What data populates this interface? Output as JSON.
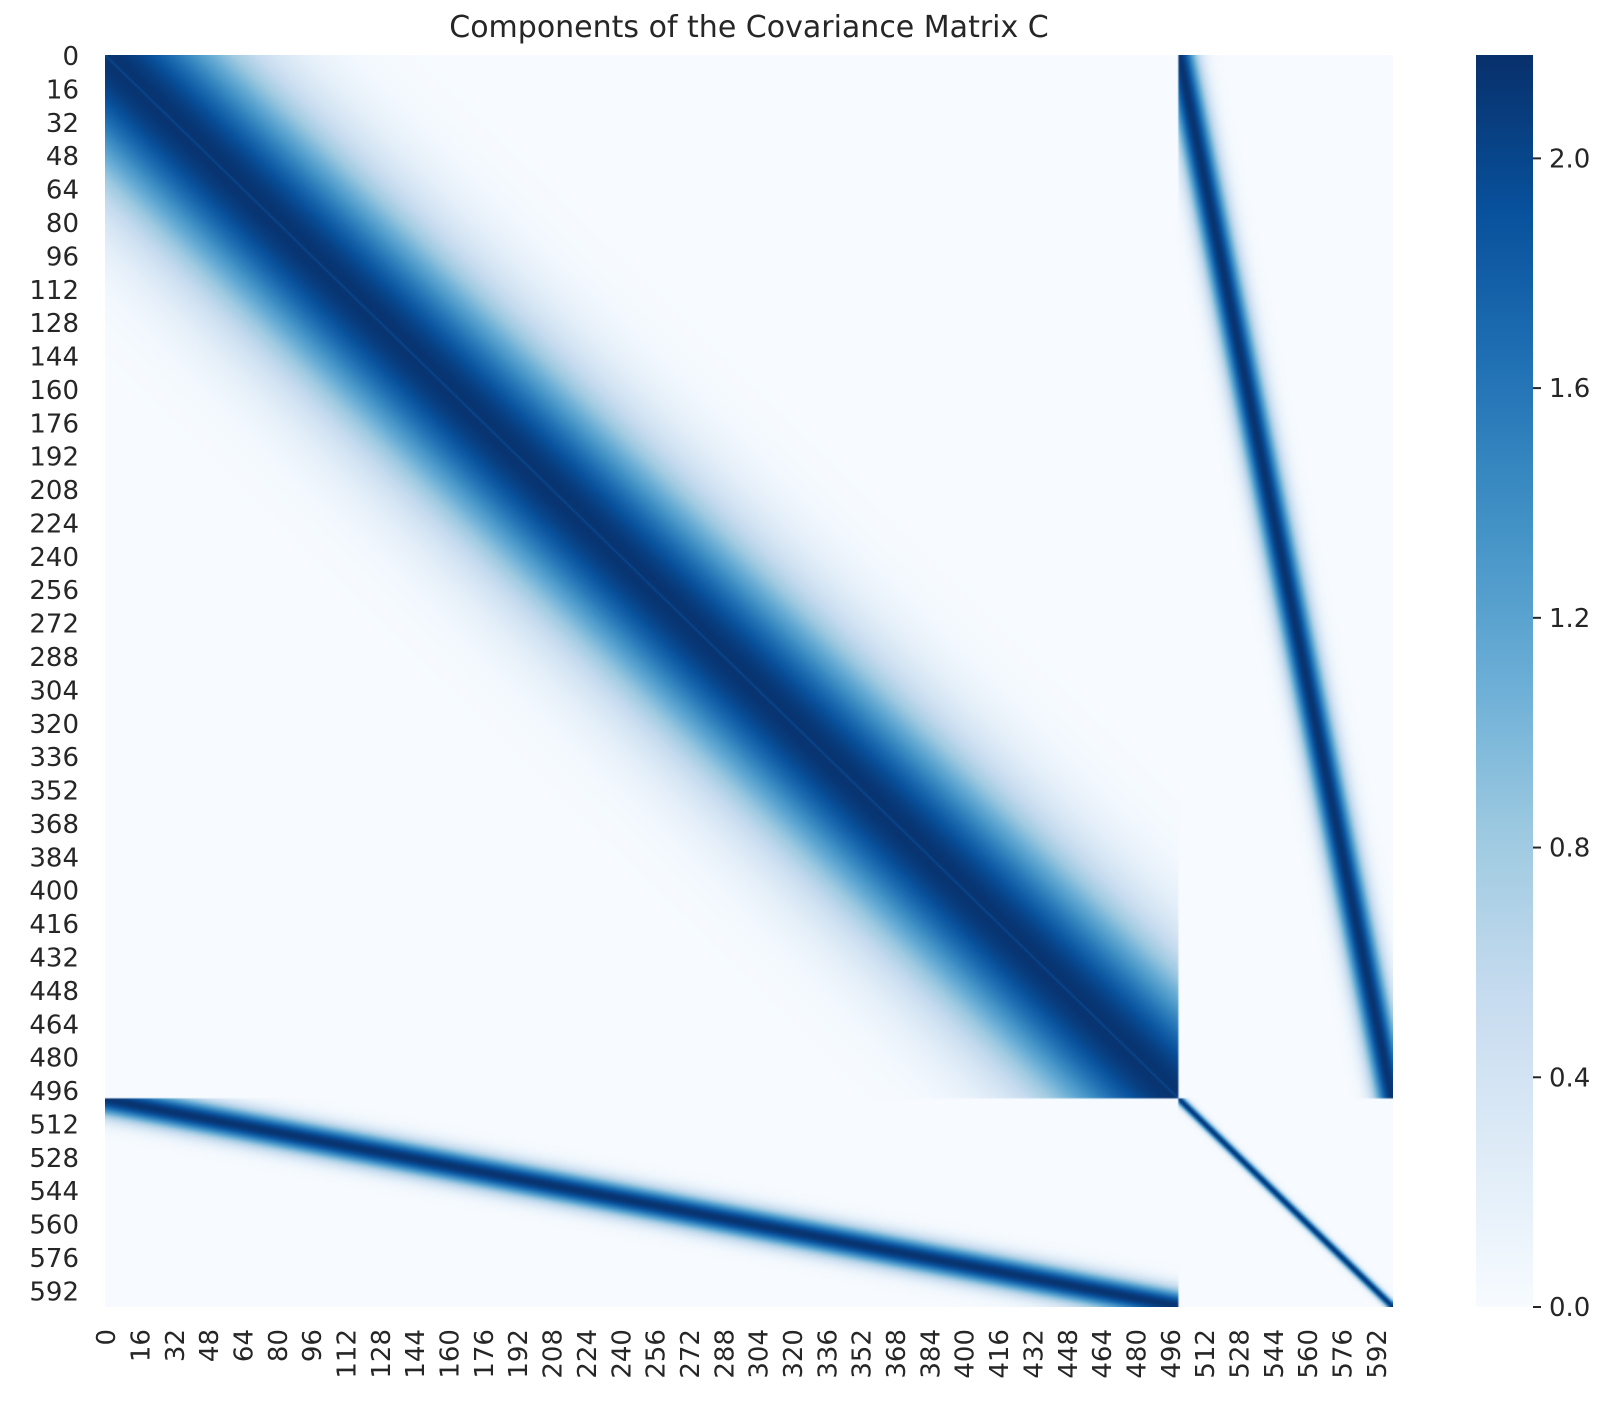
{
  "chart_data": {
    "type": "heatmap",
    "title": "Components of the Covariance Matrix C",
    "xlabel": "",
    "ylabel": "",
    "n": 600,
    "block_boundary": 500,
    "tick_step": 16,
    "x_ticks": [
      "0",
      "16",
      "32",
      "48",
      "64",
      "80",
      "96",
      "112",
      "128",
      "144",
      "160",
      "176",
      "192",
      "208",
      "224",
      "240",
      "256",
      "272",
      "288",
      "304",
      "320",
      "336",
      "352",
      "368",
      "384",
      "400",
      "416",
      "432",
      "448",
      "464",
      "480",
      "496",
      "512",
      "528",
      "544",
      "560",
      "576",
      "592"
    ],
    "y_ticks": [
      "0",
      "16",
      "32",
      "48",
      "64",
      "80",
      "96",
      "112",
      "128",
      "144",
      "160",
      "176",
      "192",
      "208",
      "224",
      "240",
      "256",
      "272",
      "288",
      "304",
      "320",
      "336",
      "352",
      "368",
      "384",
      "400",
      "416",
      "432",
      "448",
      "464",
      "480",
      "496",
      "512",
      "528",
      "544",
      "560",
      "576",
      "592"
    ],
    "colormap": "Blues",
    "vmin": 0.0,
    "vmax": 2.18,
    "colorbar_ticks": [
      "0.0",
      "0.4",
      "0.8",
      "1.2",
      "1.6",
      "2.0"
    ],
    "colorbar_tick_values": [
      0.0,
      0.4,
      0.8,
      1.2,
      1.6,
      2.0
    ],
    "structure": {
      "top_left_band_peak": 2.15,
      "top_left_band_width_indices": 60,
      "top_left_diagonal_value": 1.95,
      "off_diagonal_band_peak": 2.15,
      "off_diagonal_band_width_indices": 8,
      "bottom_right_band_peak": 2.15,
      "bottom_right_band_width_indices": 3,
      "background": 0.0
    },
    "grid": false,
    "legend": "colorbar-right"
  }
}
